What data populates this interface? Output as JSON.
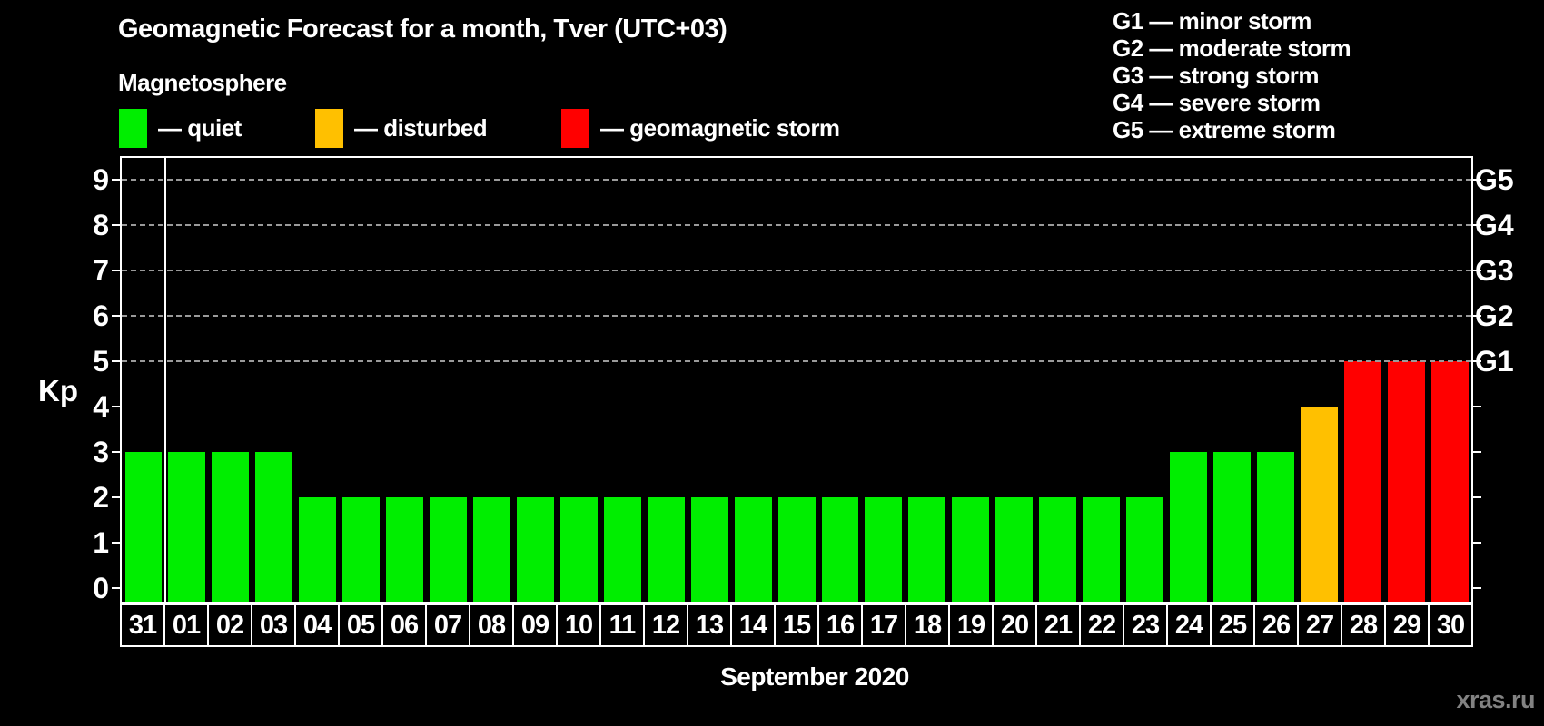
{
  "title": "Geomagnetic Forecast for a month, Tver (UTC+03)",
  "subtitle": "Magnetosphere",
  "legend": {
    "quiet": "— quiet",
    "disturbed": "— disturbed",
    "storm": "— geomagnetic storm"
  },
  "storm_scale": [
    "G1 — minor storm",
    "G2 — moderate storm",
    "G3 — strong storm",
    "G4 — severe storm",
    "G5 — extreme storm"
  ],
  "axis": {
    "kp_label": "Kp",
    "y_ticks": [
      0,
      1,
      2,
      3,
      4,
      5,
      6,
      7,
      8,
      9
    ],
    "g_scale": [
      {
        "kp": 5,
        "label": "G1"
      },
      {
        "kp": 6,
        "label": "G2"
      },
      {
        "kp": 7,
        "label": "G3"
      },
      {
        "kp": 8,
        "label": "G4"
      },
      {
        "kp": 9,
        "label": "G5"
      }
    ]
  },
  "footer": {
    "month_label": "September 2020",
    "watermark": "xras.ru"
  },
  "colors": {
    "quiet": "#00ee00",
    "disturbed": "#ffc000",
    "storm": "#ff0000",
    "grid": "#9a9a9a",
    "axis": "#ffffff",
    "watermark": "#828282"
  },
  "chart_data": {
    "type": "bar",
    "title": "Geomagnetic Forecast for a month, Tver (UTC+03)",
    "xlabel": "September 2020",
    "ylabel": "Kp",
    "ylim": [
      0,
      9.5
    ],
    "grid_levels": [
      5,
      6,
      7,
      8,
      9
    ],
    "legend_position": "top",
    "separator_after_index": 0,
    "categories": [
      "31",
      "01",
      "02",
      "03",
      "04",
      "05",
      "06",
      "07",
      "08",
      "09",
      "10",
      "11",
      "12",
      "13",
      "14",
      "15",
      "16",
      "17",
      "18",
      "19",
      "20",
      "21",
      "22",
      "23",
      "24",
      "25",
      "26",
      "27",
      "28",
      "29",
      "30"
    ],
    "values": [
      3,
      3,
      3,
      3,
      2,
      2,
      2,
      2,
      2,
      2,
      2,
      2,
      2,
      2,
      2,
      2,
      2,
      2,
      2,
      2,
      2,
      2,
      2,
      2,
      3,
      3,
      3,
      4,
      5,
      5,
      5
    ],
    "statuses": [
      "quiet",
      "quiet",
      "quiet",
      "quiet",
      "quiet",
      "quiet",
      "quiet",
      "quiet",
      "quiet",
      "quiet",
      "quiet",
      "quiet",
      "quiet",
      "quiet",
      "quiet",
      "quiet",
      "quiet",
      "quiet",
      "quiet",
      "quiet",
      "quiet",
      "quiet",
      "quiet",
      "quiet",
      "quiet",
      "quiet",
      "quiet",
      "disturbed",
      "storm",
      "storm",
      "storm"
    ]
  }
}
